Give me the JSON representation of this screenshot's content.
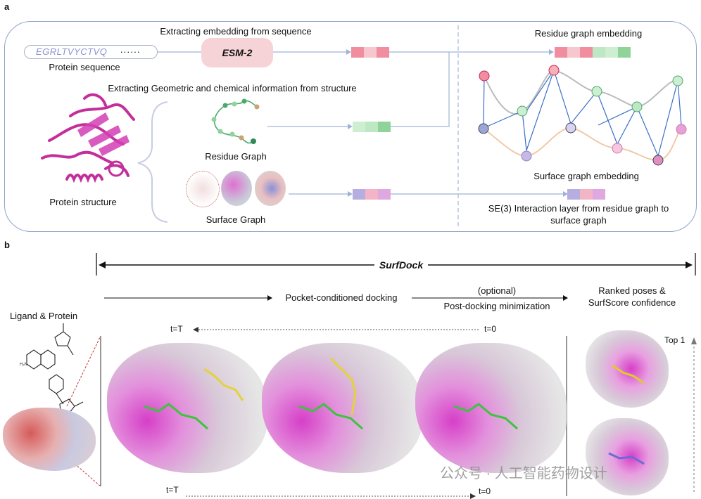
{
  "panel_a": {
    "letter": "a",
    "sequence_text": "EGRLTVYCTVQ",
    "sequence_ellipsis": "······",
    "sequence_label": "Protein sequence",
    "extract_seq_title": "Extracting embedding from sequence",
    "esm_label": "ESM-2",
    "extract_struct_title": "Extracting Geometric and chemical information from structure",
    "structure_label": "Protein structure",
    "residue_graph_label": "Residue Graph",
    "surface_graph_label": "Surface Graph",
    "residue_embedding_title": "Residue graph embedding",
    "surface_embedding_title": "Surface graph embedding",
    "se3_label_line1": "SE(3) Interaction layer from residue graph to",
    "se3_label_line2": "surface graph",
    "colors": {
      "frame": "#8fa4c9",
      "esm_fill": "#f6d3d6",
      "pink": "#e9a0ad",
      "green": "#8fd39a",
      "purple": "#a79ad8",
      "magenta": "#d43fb5"
    }
  },
  "panel_b": {
    "letter": "b",
    "surfdock_title": "SurfDock",
    "ligand_protein_label": "Ligand & Protein",
    "pocket_docking_label": "Pocket-conditioned docking",
    "optional_label": "(optional)",
    "post_docking_label": "Post-docking minimization",
    "ranked_line1": "Ranked poses &",
    "ranked_line2": "SurfScore confidence",
    "t_T_top": "t=T",
    "t_0_top": "t=0",
    "t_T_bottom": "t=T",
    "t_0_bottom": "t=0",
    "top1_label": "Top 1",
    "watermark": "公众号 · 人工智能药物设计"
  }
}
